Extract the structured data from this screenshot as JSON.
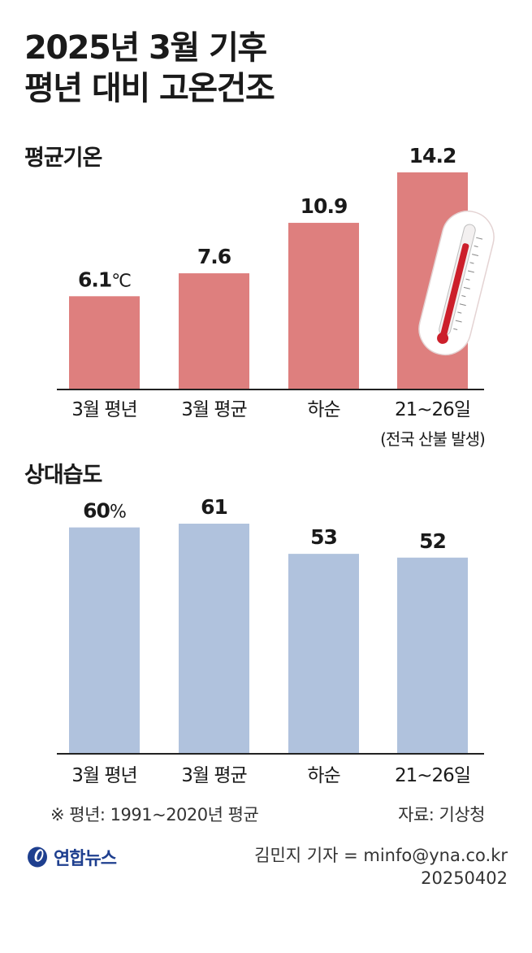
{
  "title_line1": "2025년 3월 기후",
  "title_line2": "평년 대비 고온건조",
  "colors": {
    "temp_bar": "#de7f7e",
    "humidity_bar": "#b0c2dd",
    "axis": "#222222",
    "thermo_red": "#cc1f2b"
  },
  "chart_data": [
    {
      "type": "bar",
      "title": "평균기온",
      "categories": [
        "3월 평년",
        "3월 평균",
        "하순",
        "21~26일"
      ],
      "category_sublabels": [
        "",
        "",
        "",
        "(전국 산불 발생)"
      ],
      "values": [
        6.1,
        7.6,
        10.9,
        14.2
      ],
      "value_labels": [
        "6.1",
        "7.6",
        "10.9",
        "14.2"
      ],
      "unit": "℃",
      "ylim": [
        0,
        14.2
      ]
    },
    {
      "type": "bar",
      "title": "상대습도",
      "categories": [
        "3월 평년",
        "3월 평균",
        "하순",
        "21~26일"
      ],
      "values": [
        60,
        61,
        53,
        52
      ],
      "value_labels": [
        "60",
        "61",
        "53",
        "52"
      ],
      "unit": "%",
      "ylim": [
        0,
        61
      ]
    }
  ],
  "footnote": "※ 평년: 1991~2020년 평균",
  "source": "자료: 기상청",
  "logo_text": "연합뉴스",
  "credit_line1": "김민지 기자 = minfo@yna.co.kr",
  "credit_line2": "20250402"
}
